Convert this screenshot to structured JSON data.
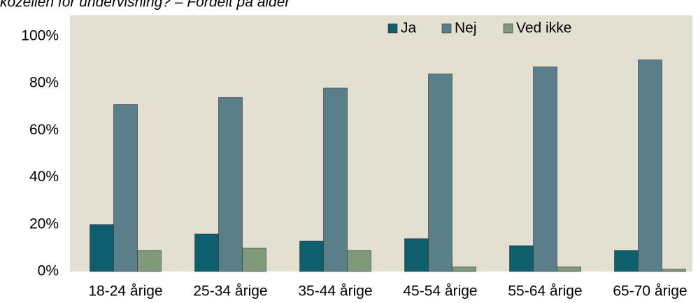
{
  "chart_data": {
    "type": "bar",
    "title": "kozellen for undervisning? – Fordelt på alder",
    "categories": [
      "18-24 årige",
      "25-34 årige",
      "35-44 årige",
      "45-54 årige",
      "55-64 årige",
      "65-70 årige"
    ],
    "series": [
      {
        "name": "Ja",
        "color": "#0e5f6e",
        "values": [
          20,
          16,
          13,
          14,
          11,
          9
        ]
      },
      {
        "name": "Nej",
        "color": "#5a7f8a",
        "values": [
          71,
          74,
          78,
          84,
          87,
          90
        ]
      },
      {
        "name": "Ved ikke",
        "color": "#7f9a7a",
        "values": [
          9,
          10,
          9,
          2,
          2,
          1
        ]
      }
    ],
    "ylim": [
      0,
      100
    ],
    "yticks": [
      {
        "value": 0,
        "label": "0%"
      },
      {
        "value": 20,
        "label": "20%"
      },
      {
        "value": 40,
        "label": "40%"
      },
      {
        "value": 60,
        "label": "60%"
      },
      {
        "value": 80,
        "label": "80%"
      },
      {
        "value": 100,
        "label": "100%"
      }
    ],
    "grid": false,
    "legend": "top"
  }
}
